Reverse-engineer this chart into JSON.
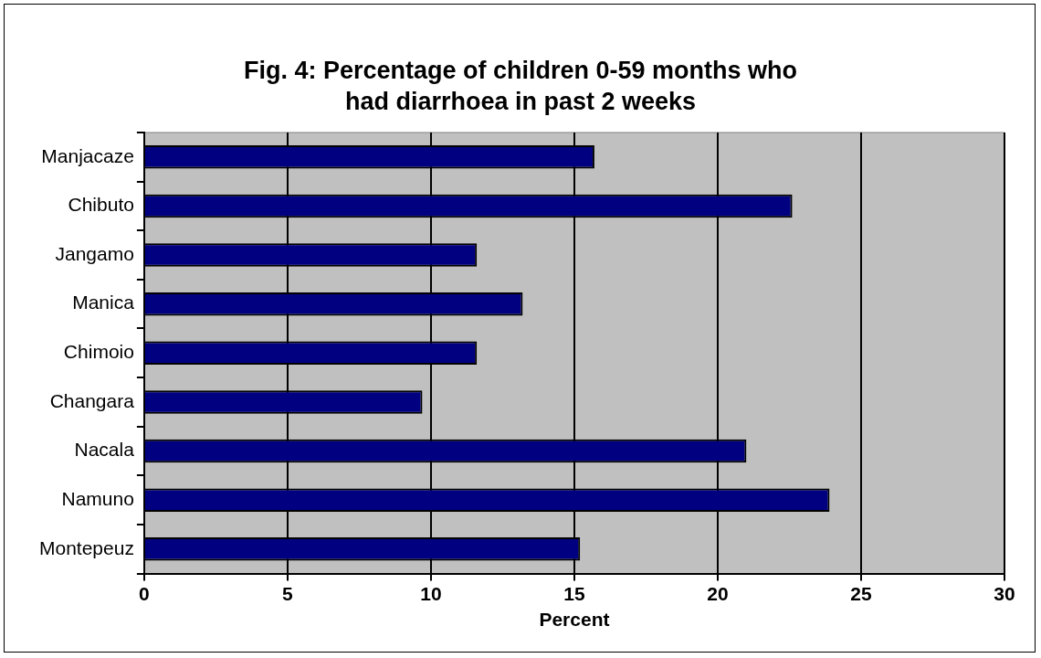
{
  "chart_data": {
    "type": "bar",
    "orientation": "horizontal",
    "title": "Fig. 4: Percentage of children 0-59 months who had diarrhoea in past 2 weeks",
    "xlabel": "Percent",
    "categories": [
      "Manjacaze",
      "Chibuto",
      "Jangamo",
      "Manica",
      "Chimoio",
      "Changara",
      "Nacala",
      "Namuno",
      "Montepeuz"
    ],
    "values": [
      15.7,
      22.6,
      11.6,
      13.2,
      11.6,
      9.7,
      21.0,
      23.9,
      15.2
    ],
    "color": "#000080",
    "xlim": [
      0,
      30
    ],
    "xticks": [
      0,
      5,
      10,
      15,
      20,
      25,
      30
    ],
    "grid": "x",
    "legend": false
  }
}
